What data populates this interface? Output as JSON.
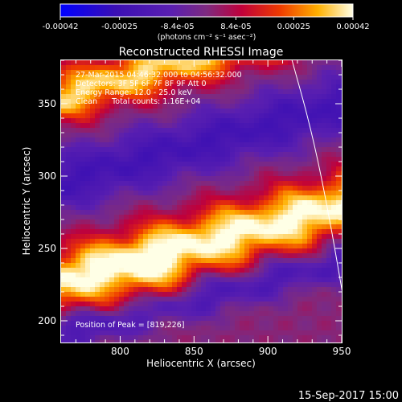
{
  "chart_data": {
    "type": "heatmap",
    "title": "Reconstructed RHESSI Image",
    "xlabel": "Heliocentric X (arcsec)",
    "ylabel": "Heliocentric Y (arcsec)",
    "xlim": [
      760,
      950
    ],
    "ylim": [
      185,
      380
    ],
    "x_ticks": [
      800,
      850,
      900,
      950
    ],
    "y_ticks": [
      200,
      250,
      300,
      350
    ],
    "x_tick_labels": [
      "800",
      "850",
      "900",
      "950"
    ],
    "y_tick_labels": [
      "200",
      "250",
      "300",
      "350"
    ],
    "colorbar": {
      "ticks": [
        -0.00042,
        -0.00025,
        -8.4e-05,
        8.4e-05,
        0.00025,
        0.00042
      ],
      "tick_labels": [
        "-0.00042",
        "-0.00025",
        "-8.4e-05",
        "8.4e-05",
        "0.00025",
        "0.00042"
      ],
      "label": "(photons cm⁻² s⁻¹ asec⁻²)",
      "range": [
        -0.00042,
        0.00042
      ]
    },
    "annotations": [
      "27-Mar-2015 04:46:32.000 to 04:56:32.000",
      "Detectors: 3F 5F 6F 7F 8F 9F Att 0",
      "Energy Range: 12.0 - 25.0 keV",
      "Clean      Total counts: 1.16E+04"
    ],
    "peak_label": "Position of Peak = [819,226]",
    "peak": [
      819,
      226
    ],
    "bands": [
      {
        "name": "bright-lower",
        "y_at_760": 228,
        "slope": 0.27,
        "width": 21,
        "amp": 1.0
      },
      {
        "name": "bright-upper",
        "y_at_760": 355,
        "slope": 0.3,
        "width": 17,
        "amp": 0.85
      },
      {
        "name": "dark-middle",
        "y_at_760": 296,
        "slope": 0.28,
        "width": 22,
        "amp": -0.55
      },
      {
        "name": "dark-lower",
        "y_at_760": 190,
        "slope": 0.27,
        "width": 13,
        "amp": -0.45
      }
    ],
    "limb_curve": [
      [
        915,
        385
      ],
      [
        930,
        330
      ],
      [
        942,
        270
      ],
      [
        952,
        210
      ],
      [
        958,
        180
      ]
    ]
  },
  "footer": {
    "date": "15-Sep-2017 15:00"
  }
}
